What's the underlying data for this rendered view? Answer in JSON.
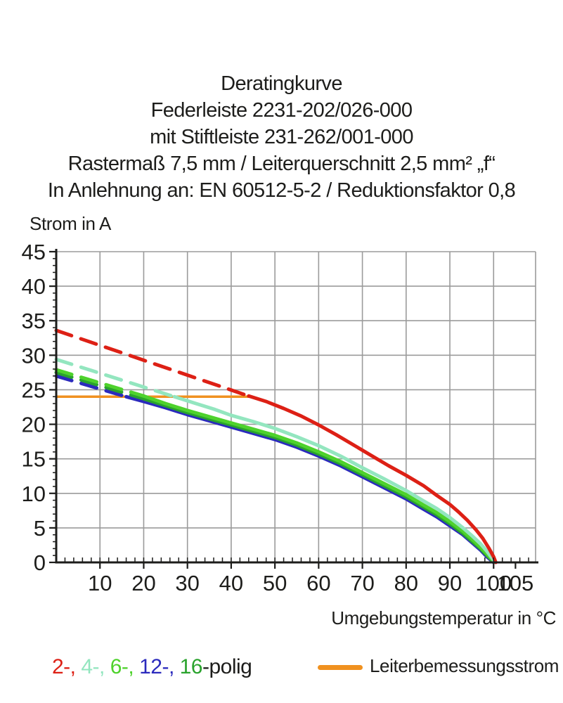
{
  "header": {
    "lines": [
      "Deratingkurve",
      "Federleiste 2231-202/026-000",
      "mit Stiftleiste 231-262/001-000",
      "Rastermaß 7,5 mm / Leiterquerschnitt 2,5 mm² „f“",
      "In Anlehnung an: EN 60512-5-2 / Reduktionsfaktor 0,8"
    ]
  },
  "legend": {
    "poles_parts": [
      {
        "text": "2-, ",
        "color": "#dd2015"
      },
      {
        "text": "4-, ",
        "color": "#93e6bf"
      },
      {
        "text": "6-, ",
        "color": "#4ed22c"
      },
      {
        "text": "12-, ",
        "color": "#2b2abd"
      },
      {
        "text": "16",
        "color": "#2aa32d"
      },
      {
        "text": "-polig",
        "color": "#1d1d1b"
      }
    ],
    "reference_label": "Leiterbemessungsstrom",
    "reference_color": "#f0911f"
  },
  "chart_data": {
    "type": "line",
    "title": "Deratingkurve",
    "xlabel": "Umgebungstemperatur in °C",
    "ylabel": "Strom in A",
    "xlim": [
      0,
      109.6
    ],
    "ylim": [
      0,
      45
    ],
    "x_ticks": [
      10,
      20,
      30,
      40,
      50,
      60,
      70,
      80,
      90,
      100,
      105
    ],
    "x_gridlines": [
      10,
      20,
      30,
      40,
      50,
      60,
      70,
      80,
      90,
      100
    ],
    "y_ticks": [
      0,
      5,
      10,
      15,
      20,
      25,
      30,
      35,
      40,
      45
    ],
    "x_minor_step": 2,
    "y_minor_step": 1,
    "grid": true,
    "grid_color": "#9b9b9b",
    "axis_color": "#1d1d1b",
    "reference_line": {
      "name": "Leiterbemessungsstrom",
      "value": 24,
      "x_start": 0,
      "x_end": 44.3,
      "color": "#f0911f"
    },
    "series": [
      {
        "name": "12-polig",
        "color": "#2b2abd",
        "dashed_points": [
          [
            0,
            27.0
          ],
          [
            16,
            24.0
          ]
        ],
        "solid_points": [
          [
            16,
            24.0
          ],
          [
            20,
            23.3
          ],
          [
            25,
            22.4
          ],
          [
            30,
            21.4
          ],
          [
            35,
            20.5
          ],
          [
            40,
            19.6
          ],
          [
            45,
            18.7
          ],
          [
            50,
            17.8
          ],
          [
            55,
            16.7
          ],
          [
            60,
            15.4
          ],
          [
            65,
            14.0
          ],
          [
            70,
            12.4
          ],
          [
            75,
            10.8
          ],
          [
            80,
            9.2
          ],
          [
            84,
            7.7
          ],
          [
            87,
            6.6
          ],
          [
            90,
            5.3
          ],
          [
            93,
            4.0
          ],
          [
            95,
            2.9
          ],
          [
            97,
            1.8
          ],
          [
            98.5,
            0.8
          ],
          [
            99.8,
            0.1
          ],
          [
            100,
            0
          ]
        ]
      },
      {
        "name": "16-polig",
        "color": "#2aa32d",
        "dashed_points": [
          [
            0,
            27.5
          ],
          [
            18.5,
            24.0
          ]
        ],
        "solid_points": [
          [
            18.5,
            24.0
          ],
          [
            25,
            22.7
          ],
          [
            30,
            21.7
          ],
          [
            35,
            20.8
          ],
          [
            40,
            19.9
          ],
          [
            45,
            19.0
          ],
          [
            50,
            18.1
          ],
          [
            55,
            17.0
          ],
          [
            60,
            15.7
          ],
          [
            65,
            14.3
          ],
          [
            70,
            12.7
          ],
          [
            75,
            11.1
          ],
          [
            80,
            9.5
          ],
          [
            84,
            8.0
          ],
          [
            87,
            6.9
          ],
          [
            90,
            5.6
          ],
          [
            93,
            4.2
          ],
          [
            95,
            3.1
          ],
          [
            97,
            2.0
          ],
          [
            98.5,
            1.0
          ],
          [
            99.8,
            0.2
          ],
          [
            100.1,
            0
          ]
        ]
      },
      {
        "name": "6-polig",
        "color": "#4ed22c",
        "dashed_points": [
          [
            0,
            27.9
          ],
          [
            20,
            24.1
          ]
        ],
        "solid_points": [
          [
            20,
            24.1
          ],
          [
            25,
            23.0
          ],
          [
            30,
            22.0
          ],
          [
            35,
            21.1
          ],
          [
            40,
            20.2
          ],
          [
            45,
            19.3
          ],
          [
            50,
            18.4
          ],
          [
            55,
            17.3
          ],
          [
            60,
            16.0
          ],
          [
            65,
            14.6
          ],
          [
            70,
            13.0
          ],
          [
            75,
            11.4
          ],
          [
            80,
            9.8
          ],
          [
            84,
            8.3
          ],
          [
            87,
            7.2
          ],
          [
            90,
            5.9
          ],
          [
            93,
            4.5
          ],
          [
            95,
            3.4
          ],
          [
            97,
            2.2
          ],
          [
            98.5,
            1.2
          ],
          [
            99.8,
            0.3
          ],
          [
            100.2,
            0
          ]
        ]
      },
      {
        "name": "4-polig",
        "color": "#93e6bf",
        "dashed_points": [
          [
            0,
            29.4
          ],
          [
            27,
            24.0
          ]
        ],
        "solid_points": [
          [
            27,
            24.0
          ],
          [
            32,
            23.0
          ],
          [
            36,
            22.2
          ],
          [
            40,
            21.3
          ],
          [
            45,
            20.4
          ],
          [
            50,
            19.4
          ],
          [
            55,
            18.2
          ],
          [
            60,
            16.9
          ],
          [
            65,
            15.4
          ],
          [
            70,
            13.7
          ],
          [
            75,
            12.1
          ],
          [
            80,
            10.4
          ],
          [
            84,
            8.9
          ],
          [
            87,
            7.8
          ],
          [
            90,
            6.5
          ],
          [
            93,
            5.0
          ],
          [
            95,
            3.9
          ],
          [
            97,
            2.7
          ],
          [
            98.5,
            1.6
          ],
          [
            99.8,
            0.5
          ],
          [
            100.3,
            0
          ]
        ]
      },
      {
        "name": "2-polig",
        "color": "#dd2015",
        "dashed_points": [
          [
            0,
            33.6
          ],
          [
            44,
            24.1
          ]
        ],
        "solid_points": [
          [
            44,
            24.1
          ],
          [
            48,
            23.3
          ],
          [
            52,
            22.3
          ],
          [
            56,
            21.2
          ],
          [
            60,
            19.9
          ],
          [
            64,
            18.5
          ],
          [
            68,
            17.0
          ],
          [
            72,
            15.5
          ],
          [
            76,
            14.0
          ],
          [
            80,
            12.6
          ],
          [
            84,
            11.1
          ],
          [
            87,
            9.7
          ],
          [
            90,
            8.4
          ],
          [
            92,
            7.3
          ],
          [
            94,
            6.1
          ],
          [
            96,
            4.7
          ],
          [
            97.5,
            3.5
          ],
          [
            99,
            2.0
          ],
          [
            100,
            0.8
          ],
          [
            100.5,
            0
          ]
        ]
      }
    ]
  }
}
